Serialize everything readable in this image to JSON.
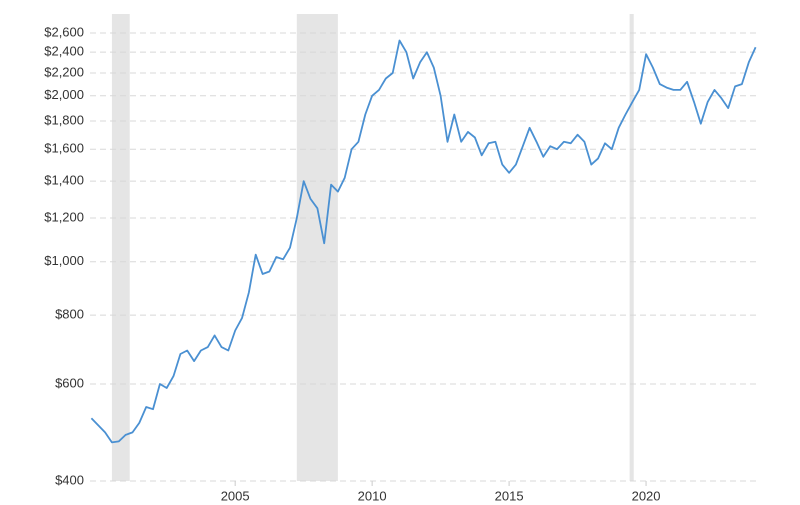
{
  "chart_data": {
    "type": "line",
    "log_y": true,
    "grid": true,
    "color": "#4a90d2",
    "shade_color": "#e5e5e5",
    "xlim": [
      1999.7,
      2024.05
    ],
    "ylim": [
      400,
      2600
    ],
    "xticks": [
      2005,
      2010,
      2015,
      2020
    ],
    "yticks": [
      {
        "value": 400,
        "label": "$400"
      },
      {
        "value": 600,
        "label": "$600"
      },
      {
        "value": 800,
        "label": "$800"
      },
      {
        "value": 1000,
        "label": "$1,000"
      },
      {
        "value": 1200,
        "label": "$1,200"
      },
      {
        "value": 1400,
        "label": "$1,400"
      },
      {
        "value": 1600,
        "label": "$1,600"
      },
      {
        "value": 1800,
        "label": "$1,800"
      },
      {
        "value": 2000,
        "label": "$2,000"
      },
      {
        "value": 2200,
        "label": "$2,200"
      },
      {
        "value": 2400,
        "label": "$2,400"
      },
      {
        "value": 2600,
        "label": "$2,600"
      }
    ],
    "shaded_ranges": [
      [
        2000.5,
        2001.15
      ],
      [
        2007.25,
        2008.75
      ],
      [
        2019.4,
        2019.55
      ]
    ],
    "x": [
      1999.75,
      2000.0,
      2000.25,
      2000.5,
      2000.75,
      2001.0,
      2001.25,
      2001.5,
      2001.75,
      2002.0,
      2002.25,
      2002.5,
      2002.75,
      2003.0,
      2003.25,
      2003.5,
      2003.75,
      2004.0,
      2004.25,
      2004.5,
      2004.75,
      2005.0,
      2005.25,
      2005.5,
      2005.75,
      2006.0,
      2006.25,
      2006.5,
      2006.75,
      2007.0,
      2007.25,
      2007.5,
      2007.75,
      2008.0,
      2008.25,
      2008.5,
      2008.75,
      2009.0,
      2009.25,
      2009.5,
      2009.75,
      2010.0,
      2010.25,
      2010.5,
      2010.75,
      2011.0,
      2011.25,
      2011.5,
      2011.75,
      2012.0,
      2012.25,
      2012.5,
      2012.75,
      2013.0,
      2013.25,
      2013.5,
      2013.75,
      2014.0,
      2014.25,
      2014.5,
      2014.75,
      2015.0,
      2015.25,
      2015.5,
      2015.75,
      2016.0,
      2016.25,
      2016.5,
      2016.75,
      2017.0,
      2017.25,
      2017.5,
      2017.75,
      2018.0,
      2018.25,
      2018.5,
      2018.75,
      2019.0,
      2019.25,
      2019.5,
      2019.75,
      2020.0,
      2020.25,
      2020.5,
      2020.75,
      2021.0,
      2021.25,
      2021.5,
      2021.75,
      2022.0,
      2022.25,
      2022.5,
      2022.75,
      2023.0,
      2023.25,
      2023.5,
      2023.75,
      2024.0
    ],
    "values": [
      520,
      505,
      490,
      470,
      472,
      485,
      490,
      510,
      545,
      540,
      600,
      590,
      620,
      680,
      690,
      660,
      690,
      700,
      735,
      700,
      690,
      750,
      790,
      880,
      1030,
      950,
      960,
      1020,
      1010,
      1060,
      1200,
      1400,
      1300,
      1250,
      1080,
      1380,
      1340,
      1420,
      1600,
      1650,
      1850,
      2000,
      2050,
      2150,
      2200,
      2520,
      2400,
      2150,
      2300,
      2400,
      2250,
      2000,
      1650,
      1850,
      1650,
      1720,
      1680,
      1560,
      1640,
      1650,
      1500,
      1450,
      1500,
      1620,
      1750,
      1650,
      1550,
      1620,
      1600,
      1650,
      1640,
      1700,
      1650,
      1500,
      1540,
      1640,
      1600,
      1750,
      1850,
      1950,
      2050,
      2380,
      2250,
      2100,
      2070,
      2050,
      2050,
      2120,
      1950,
      1780,
      1950,
      2050,
      1980,
      1900,
      2080,
      2100,
      2300,
      2450
    ]
  }
}
